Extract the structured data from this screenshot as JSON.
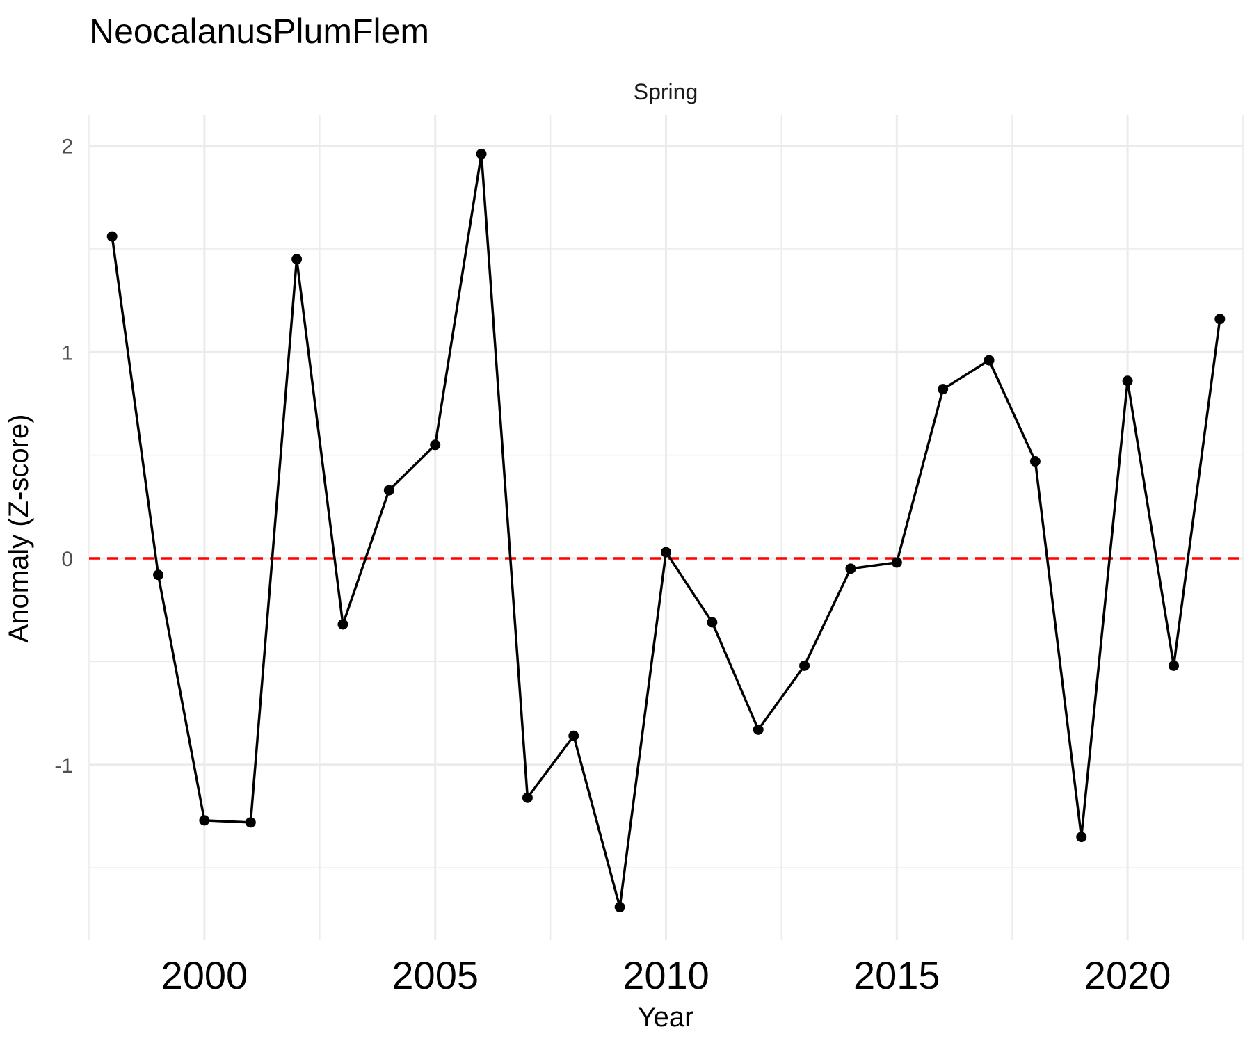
{
  "chart_data": {
    "type": "line",
    "title": "NeocalanusPlumFlem",
    "facet_label": "Spring",
    "xlabel": "Year",
    "ylabel": "Anomaly (Z-score)",
    "xlim": [
      1997.5,
      2022.5
    ],
    "ylim": [
      -1.85,
      2.15
    ],
    "x_ticks": [
      2000,
      2005,
      2010,
      2015,
      2020
    ],
    "x_tick_labels": [
      "2000",
      "2005",
      "2010",
      "2015",
      "2020"
    ],
    "y_ticks": [
      -1,
      0,
      1,
      2
    ],
    "y_tick_labels": [
      "-1",
      "0",
      "1",
      "2"
    ],
    "grid": true,
    "reference_line": {
      "y": 0,
      "color": "#ff0000",
      "style": "dashed"
    },
    "line_color": "#000000",
    "series": [
      {
        "x": [
          1998,
          1999,
          2000,
          2001,
          2002,
          2003,
          2004,
          2005,
          2006,
          2007,
          2008,
          2009,
          2010,
          2011,
          2012,
          2013,
          2014,
          2015,
          2016,
          2017,
          2018,
          2019,
          2020,
          2021,
          2022
        ],
        "y": [
          1.56,
          -0.08,
          -1.27,
          -1.28,
          1.45,
          -0.32,
          0.33,
          0.55,
          1.96,
          -1.16,
          -0.86,
          -1.69,
          0.03,
          -0.31,
          -0.83,
          -0.52,
          -0.05,
          -0.02,
          0.82,
          0.96,
          0.47,
          -1.35,
          0.86,
          -0.52,
          1.16
        ]
      }
    ]
  }
}
